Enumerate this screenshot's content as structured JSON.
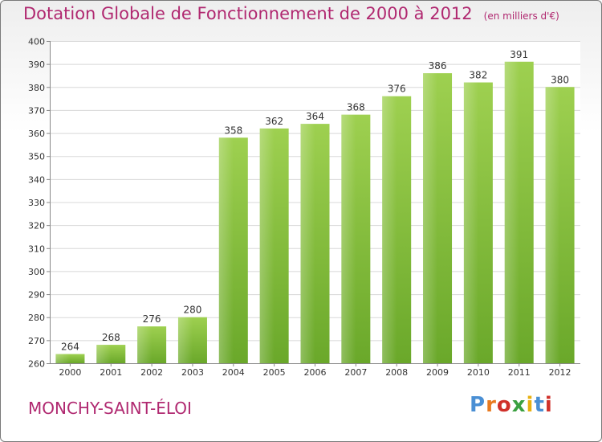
{
  "title": "Dotation Globale de Fonctionnement de 2000 à 2012",
  "subtitle": "(en milliers d'€)",
  "commune": "MONCHY-SAINT-ÉLOI",
  "logo": {
    "letters": [
      "P",
      "r",
      "o",
      "x",
      "i",
      "t",
      "i"
    ],
    "colors": [
      "#4a8fd4",
      "#e87a20",
      "#d0302a",
      "#3aa040",
      "#e8b010",
      "#4a8fd4",
      "#d0302a"
    ]
  },
  "colors": {
    "bar_top": "#9ed050",
    "bar_bottom": "#6aa82a",
    "title": "#b02870"
  },
  "chart_data": {
    "type": "bar",
    "categories": [
      "2000",
      "2001",
      "2002",
      "2003",
      "2004",
      "2005",
      "2006",
      "2007",
      "2008",
      "2009",
      "2010",
      "2011",
      "2012"
    ],
    "values": [
      264,
      268,
      276,
      280,
      358,
      362,
      364,
      368,
      376,
      386,
      382,
      391,
      380
    ],
    "ylim": [
      260,
      400
    ],
    "yticks": [
      260,
      270,
      280,
      290,
      300,
      310,
      320,
      330,
      340,
      350,
      360,
      370,
      380,
      390,
      400
    ],
    "grid": true,
    "xlabel": "",
    "ylabel": ""
  }
}
